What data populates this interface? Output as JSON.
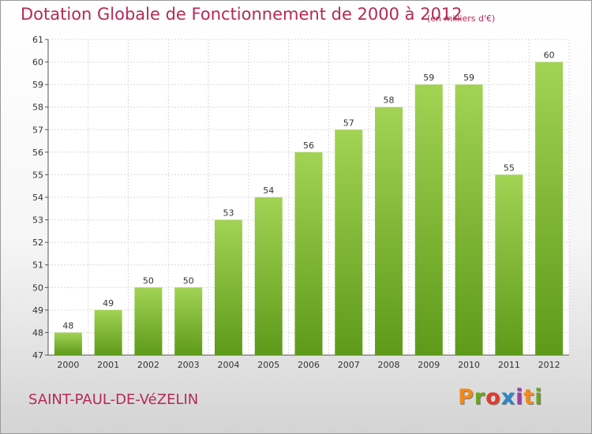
{
  "header": {
    "title": "Dotation Globale de Fonctionnement de 2000 à 2012",
    "unit": "(en milliers d'€)"
  },
  "footer": {
    "town": "SAINT-PAUL-DE-VéZELIN",
    "brand_letters": [
      "P",
      "r",
      "o",
      "x",
      "i",
      "t",
      "i"
    ]
  },
  "colors": {
    "title": "#b52a55",
    "bar_light": "#a2d354",
    "bar_dark": "#5e9a1a",
    "brand": [
      "#f28a1c",
      "#6aa51e",
      "#e23b2e",
      "#2d86c8",
      "#9a3fa6",
      "#f28a1c",
      "#6aa51e"
    ]
  },
  "chart_data": {
    "type": "bar",
    "title": "Dotation Globale de Fonctionnement de 2000 à 2012",
    "subtitle": "(en milliers d'€)",
    "xlabel": "",
    "ylabel": "",
    "categories": [
      "2000",
      "2001",
      "2002",
      "2003",
      "2004",
      "2005",
      "2006",
      "2007",
      "2008",
      "2009",
      "2010",
      "2011",
      "2012"
    ],
    "values": [
      48,
      49,
      50,
      50,
      53,
      54,
      56,
      57,
      58,
      59,
      59,
      55,
      60
    ],
    "ylim": [
      47,
      61
    ],
    "yticks": [
      47,
      48,
      49,
      50,
      51,
      52,
      53,
      54,
      55,
      56,
      57,
      58,
      59,
      60,
      61
    ],
    "grid": true,
    "legend": "none"
  }
}
